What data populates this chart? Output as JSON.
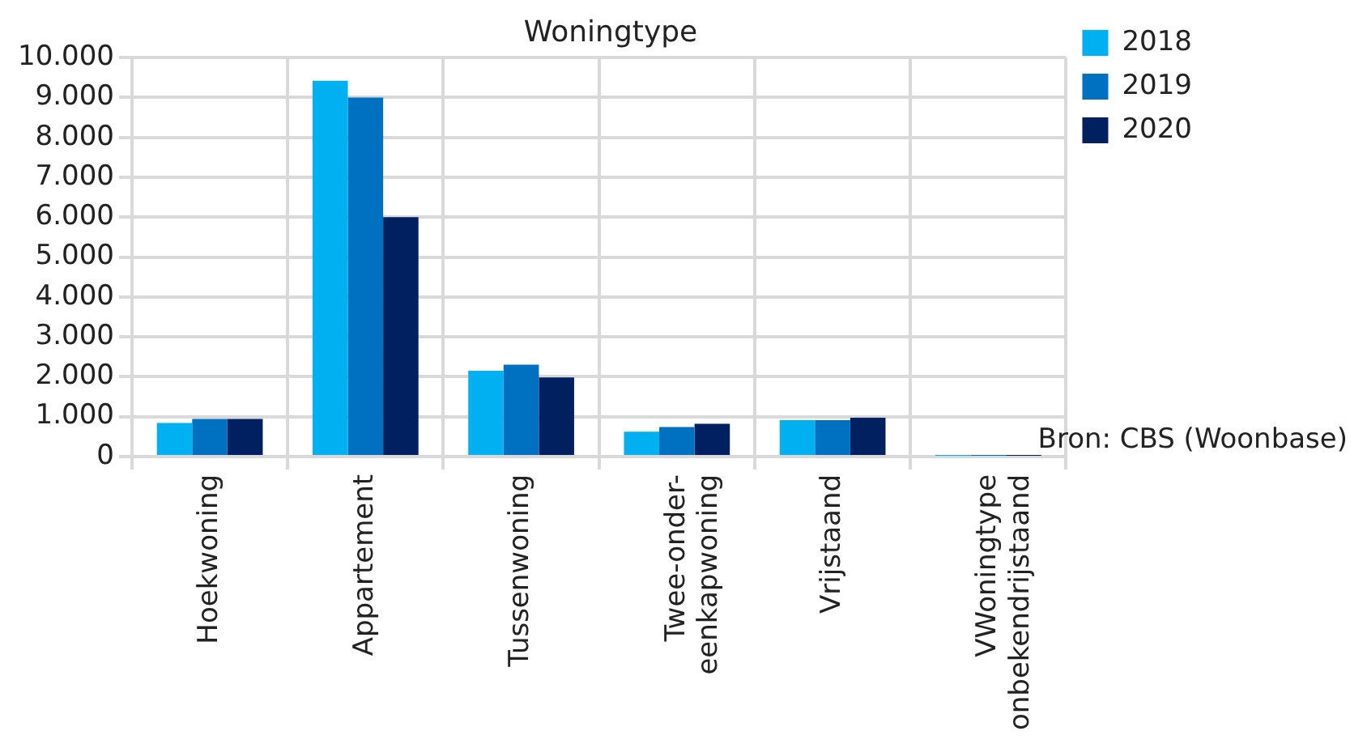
{
  "chart_data": {
    "type": "bar",
    "title": "Woningtype",
    "categories": [
      "Hoekwoning",
      "Appartement",
      "Tussenwoning",
      "Twee-onder-\neenkapwoning",
      "Vrijstaand",
      "VWoningtype\nonbekendrijstaand"
    ],
    "series": [
      {
        "name": "2018",
        "color": "#00b0f0",
        "values": [
          840,
          9420,
          2150,
          620,
          910,
          20
        ]
      },
      {
        "name": "2019",
        "color": "#0070c0",
        "values": [
          940,
          9000,
          2300,
          740,
          910,
          20
        ]
      },
      {
        "name": "2020",
        "color": "#002060",
        "values": [
          940,
          6000,
          1980,
          820,
          970,
          20
        ]
      }
    ],
    "ylim": [
      0,
      10000
    ],
    "yticks": [
      {
        "value": 0,
        "label": "0"
      },
      {
        "value": 1000,
        "label": "1.000"
      },
      {
        "value": 2000,
        "label": "2.000"
      },
      {
        "value": 3000,
        "label": "3.000"
      },
      {
        "value": 4000,
        "label": "4.000"
      },
      {
        "value": 5000,
        "label": "5.000"
      },
      {
        "value": 6000,
        "label": "6.000"
      },
      {
        "value": 7000,
        "label": "7.000"
      },
      {
        "value": 8000,
        "label": "8.000"
      },
      {
        "value": 9000,
        "label": "9.000"
      },
      {
        "value": 10000,
        "label": "10.000"
      }
    ],
    "grid": true,
    "legend": "right",
    "annotations": [
      "Bron: CBS (Woonbase)"
    ]
  }
}
